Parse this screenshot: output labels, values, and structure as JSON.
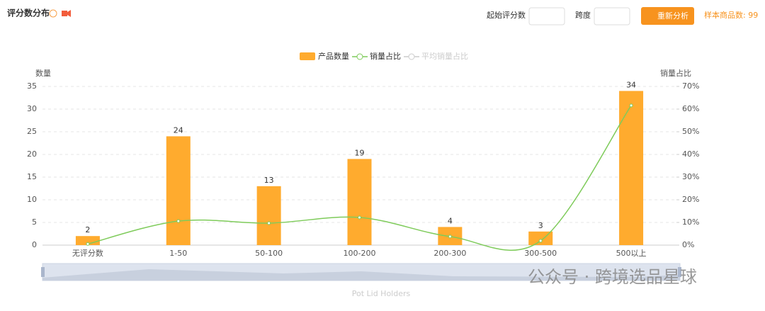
{
  "header": {
    "title": "评分数分布",
    "start_label": "起始评分数",
    "span_label": "跨度",
    "button": "重新分析",
    "sample": "样本商品数: 99"
  },
  "chart_data": {
    "type": "bar_line",
    "categories": [
      "无评分数",
      "1-50",
      "50-100",
      "100-200",
      "200-300",
      "300-500",
      "500以上"
    ],
    "series": [
      {
        "name": "产品数量",
        "color": "#ffab2e",
        "values": [
          2,
          24,
          13,
          19,
          4,
          3,
          34
        ]
      },
      {
        "name": "销量占比",
        "color": "#7ecb5a",
        "axis": "y2",
        "values": [
          0.5,
          10.6,
          9.7,
          12.2,
          3.8,
          1.9,
          61.6
        ]
      }
    ],
    "legend_inactive": "平均销量占比",
    "ylabel": "数量",
    "y2label": "销量占比",
    "ylim": [
      0,
      35
    ],
    "yticks": [
      0,
      5,
      10,
      15,
      20,
      25,
      30,
      35
    ],
    "y2lim": [
      0,
      70
    ],
    "y2ticks": [
      {
        "value": 0,
        "label": "0%"
      },
      {
        "value": 10,
        "label": "10%"
      },
      {
        "value": 20,
        "label": "20%"
      },
      {
        "value": 30,
        "label": "30%"
      },
      {
        "value": 40,
        "label": "40%"
      },
      {
        "value": 50,
        "label": "50%"
      },
      {
        "value": 60,
        "label": "60%"
      },
      {
        "value": 70,
        "label": "70%"
      }
    ],
    "grid": true,
    "xlabel": "Pot Lid Holders"
  },
  "watermark": "公众号 · 跨境选品星球"
}
